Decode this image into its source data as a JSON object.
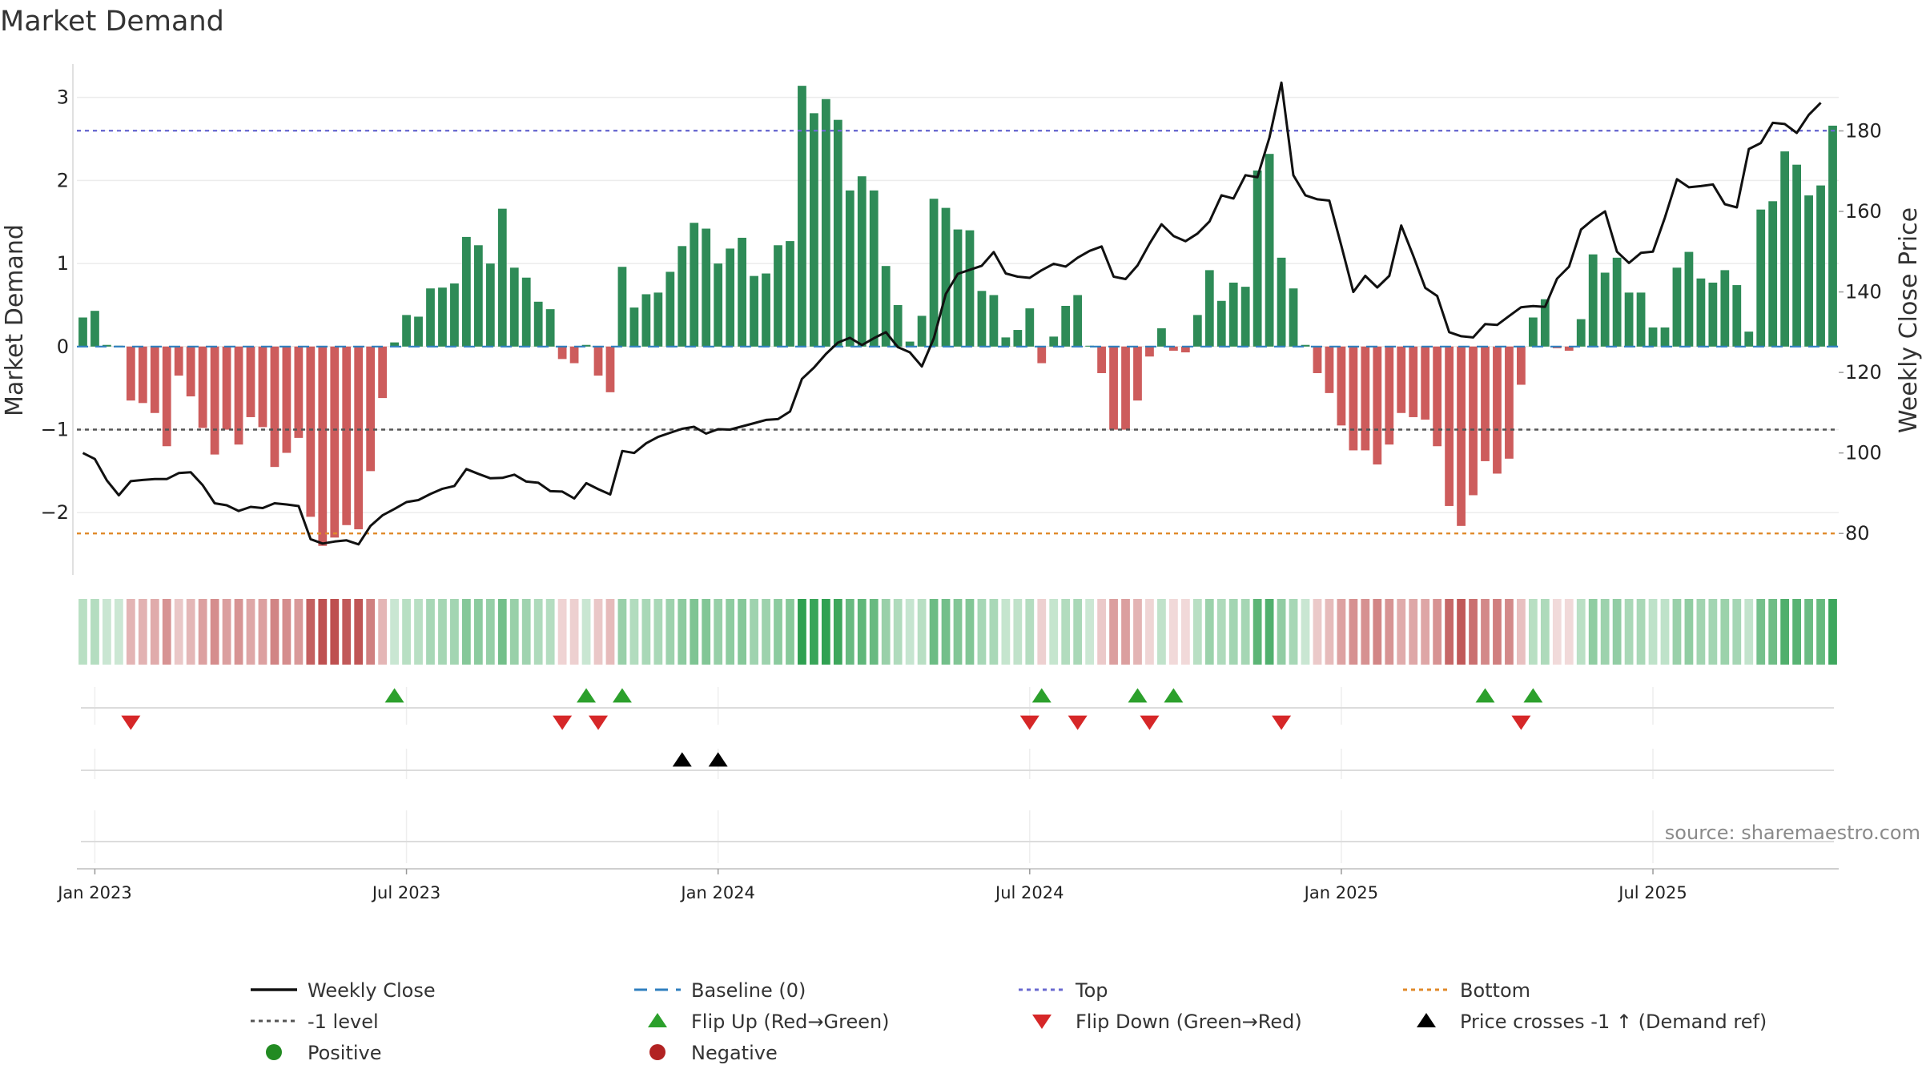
{
  "chart_data": {
    "type": "bar",
    "title": "Market Demand",
    "ylabel_left": "Market Demand",
    "ylabel_right": "Weekly Close Price",
    "ylim_left": [
      -2.75,
      3.45
    ],
    "ylim_right": [
      69.7,
      197.6
    ],
    "yticks_left": [
      3,
      2,
      1,
      0,
      -1,
      -2
    ],
    "yticks_left_labels": [
      "3",
      "2",
      "1",
      "0",
      "−1",
      "−2"
    ],
    "yticks_right": [
      180,
      160,
      140,
      120,
      100,
      80
    ],
    "date_ticks": [
      {
        "week": 1,
        "label": "Jan 2023"
      },
      {
        "week": 27,
        "label": "Jul 2023"
      },
      {
        "week": 53,
        "label": "Jan 2024"
      },
      {
        "week": 79,
        "label": "Jul 2024"
      },
      {
        "week": 105,
        "label": "Jan 2025"
      },
      {
        "week": 131,
        "label": "Jul 2025"
      }
    ],
    "reference_lines": {
      "top": 2.6,
      "minus_one": -1.0,
      "bottom": -2.25,
      "baseline": 0
    },
    "demand": [
      0.35,
      0.43,
      0.02,
      0.01,
      -0.65,
      -0.68,
      -0.8,
      -1.2,
      -0.35,
      -0.6,
      -0.98,
      -1.3,
      -1.0,
      -1.18,
      -0.85,
      -0.97,
      -1.45,
      -1.28,
      -1.1,
      -2.05,
      -2.4,
      -2.3,
      -2.15,
      -2.2,
      -1.5,
      -0.62,
      0.05,
      0.38,
      0.36,
      0.7,
      0.71,
      0.76,
      1.32,
      1.22,
      1.0,
      1.66,
      0.95,
      0.83,
      0.54,
      0.45,
      -0.15,
      -0.2,
      0.02,
      -0.35,
      -0.55,
      0.96,
      0.47,
      0.63,
      0.65,
      0.9,
      1.21,
      1.49,
      1.42,
      1.0,
      1.18,
      1.31,
      0.85,
      0.88,
      1.22,
      1.27,
      3.14,
      2.81,
      2.98,
      2.73,
      1.88,
      2.05,
      1.88,
      0.97,
      0.5,
      0.06,
      0.37,
      1.78,
      1.67,
      1.41,
      1.4,
      0.67,
      0.62,
      0.11,
      0.2,
      0.46,
      -0.2,
      0.12,
      0.49,
      0.62,
      0.01,
      -0.32,
      -1.0,
      -1.0,
      -0.65,
      -0.12,
      0.22,
      -0.05,
      -0.07,
      0.38,
      0.92,
      0.55,
      0.77,
      0.72,
      2.12,
      2.32,
      1.07,
      0.7,
      0.02,
      -0.32,
      -0.56,
      -0.95,
      -1.25,
      -1.25,
      -1.42,
      -1.18,
      -0.8,
      -0.85,
      -0.88,
      -1.2,
      -1.92,
      -2.16,
      -1.79,
      -1.38,
      -1.53,
      -1.35,
      -0.46,
      0.35,
      0.57,
      -0.02,
      -0.05,
      0.33,
      1.11,
      0.89,
      1.07,
      0.65,
      0.65,
      0.23,
      0.23,
      0.95,
      1.14,
      0.82,
      0.77,
      0.92,
      0.74,
      0.18,
      1.65,
      1.75,
      2.35,
      2.19,
      1.82,
      1.94,
      2.66
    ],
    "weekly_close": [
      100.0,
      98.5,
      93.2,
      89.5,
      93.0,
      93.3,
      93.5,
      93.5,
      95.0,
      95.2,
      92.0,
      87.5,
      87.0,
      85.6,
      86.6,
      86.3,
      87.5,
      87.2,
      86.8,
      78.6,
      77.5,
      78.0,
      78.3,
      77.3,
      81.9,
      84.5,
      86.1,
      87.8,
      88.3,
      89.8,
      91.1,
      91.8,
      96.0,
      94.8,
      93.7,
      93.8,
      94.6,
      92.9,
      92.6,
      90.5,
      90.4,
      88.7,
      92.5,
      91.0,
      89.7,
      100.5,
      100.0,
      102.4,
      104.0,
      105.0,
      106.0,
      106.5,
      104.8,
      105.9,
      105.8,
      106.6,
      107.4,
      108.2,
      108.4,
      110.3,
      118.4,
      121.2,
      124.6,
      127.4,
      128.6,
      126.8,
      128.5,
      130.0,
      126.3,
      125.0,
      121.5,
      128.5,
      139.5,
      144.5,
      145.5,
      146.5,
      149.9,
      144.6,
      143.8,
      143.5,
      145.4,
      147.0,
      146.3,
      148.5,
      150.2,
      151.3,
      143.8,
      143.2,
      146.6,
      152.0,
      156.8,
      153.9,
      152.6,
      154.5,
      157.5,
      164.0,
      163.2,
      169.0,
      168.5,
      178.3,
      192.0,
      169.0,
      164.0,
      163.0,
      162.7,
      151.5,
      140.0,
      144.0,
      141.1,
      144.0,
      156.5,
      149.0,
      141.0,
      139.0,
      130.0,
      129.0,
      128.7,
      132.0,
      131.8,
      134.0,
      136.2,
      136.5,
      136.3,
      143.3,
      146.3,
      155.5,
      158.0,
      160.0,
      150.0,
      147.2,
      149.7,
      150.0,
      158.5,
      168.0,
      166.0,
      166.3,
      166.7,
      161.8,
      161.0,
      175.5,
      177.0,
      182.0,
      181.7,
      179.5,
      184.0,
      187.0
    ],
    "flip_up_weeks": [
      26,
      42,
      45,
      80,
      88,
      91,
      117,
      121
    ],
    "flip_down_weeks": [
      4,
      40,
      43,
      79,
      83,
      89,
      100,
      120
    ],
    "price_cross_weeks": [
      50,
      53
    ],
    "source": "source: sharemaestro.com",
    "legend": [
      {
        "label": "Weekly Close",
        "kind": "solid-line",
        "color": "#111111"
      },
      {
        "label": "Baseline (0)",
        "kind": "dashed-line",
        "color": "#2f7fbf"
      },
      {
        "label": "Top",
        "kind": "dotted-line",
        "color": "#6a6ad0"
      },
      {
        "label": "Bottom",
        "kind": "dotted-line",
        "color": "#e08a2a"
      },
      {
        "label": "-1 level",
        "kind": "dotted-line",
        "color": "#555555"
      },
      {
        "label": "Flip Up (Red→Green)",
        "kind": "triangle-up",
        "color": "#2ca02c"
      },
      {
        "label": "Flip Down (Green→Red)",
        "kind": "triangle-down",
        "color": "#d62728"
      },
      {
        "label": "Price crosses -1 ↑ (Demand ref)",
        "kind": "triangle-up",
        "color": "#000000"
      },
      {
        "label": "Positive",
        "kind": "circle",
        "color": "#228b22"
      },
      {
        "label": "Negative",
        "kind": "circle",
        "color": "#b22222"
      }
    ]
  },
  "colors": {
    "positive_bar": "#2e8b57",
    "negative_bar": "#cd5c5c",
    "price_line": "#111111",
    "top_line": "#6a6ad0",
    "bottom_line": "#e08a2a",
    "minus_one_line": "#555555",
    "baseline": "#2f7fbf"
  }
}
